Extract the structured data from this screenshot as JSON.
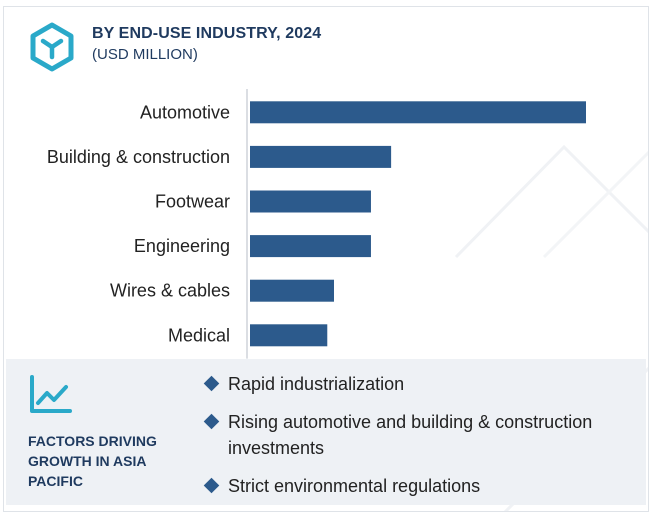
{
  "header": {
    "title": "BY END-USE INDUSTRY, 2024",
    "subtitle": "(USD MILLION)",
    "logo_icon": "cube-icon"
  },
  "chart_data": {
    "type": "bar",
    "orientation": "horizontal",
    "categories": [
      "Automotive",
      "Building & construction",
      "Footwear",
      "Engineering",
      "Wires & cables",
      "Medical"
    ],
    "values": [
      100,
      42,
      36,
      36,
      25,
      23
    ],
    "value_note_scale": "relative",
    "title": "BY END-USE INDUSTRY, 2024",
    "subtitle": "(USD MILLION)",
    "xlim": [
      0,
      100
    ],
    "grid": false,
    "bar_color": "#2c5a8c"
  },
  "factors_panel": {
    "icon": "trend-line-icon",
    "title": "FACTORS DRIVING GROWTH IN ASIA PACIFIC",
    "items": [
      "Rapid industrialization",
      "Rising automotive and building & construction investments",
      "Strict environmental regulations"
    ]
  },
  "colors": {
    "accent": "#2aa9c9",
    "bar": "#2c5a8c",
    "title": "#1f3a5f",
    "panel_bg": "#eef1f5"
  }
}
